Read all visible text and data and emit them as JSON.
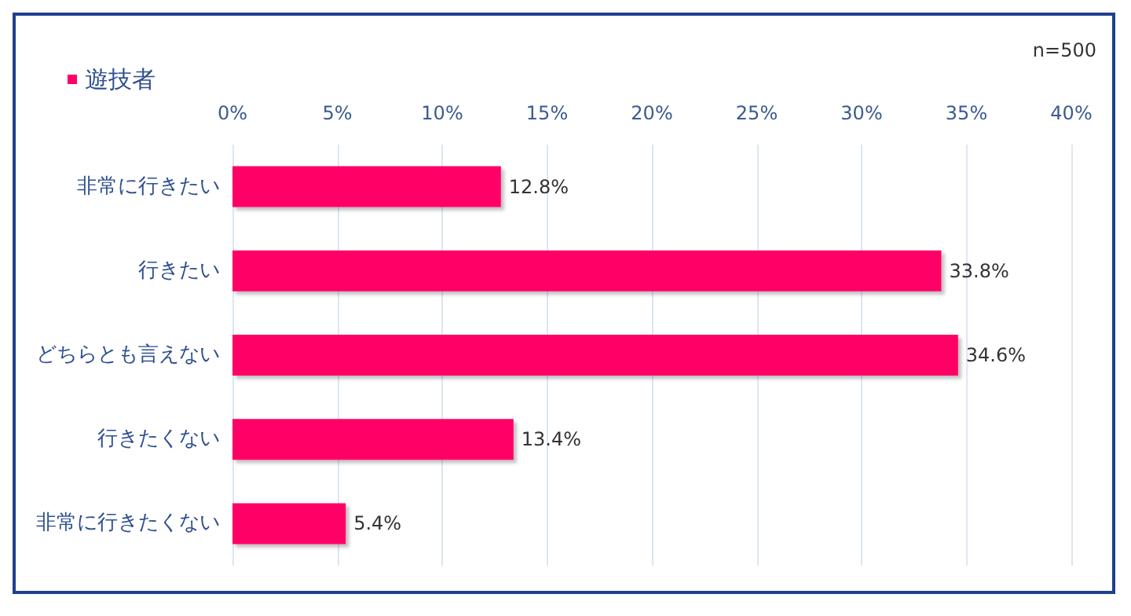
{
  "chart_data": {
    "type": "bar",
    "orientation": "horizontal",
    "categories": [
      "非常に行きたい",
      "行きたい",
      "どちらとも言えない",
      "行きたくない",
      "非常に行きたくない"
    ],
    "series": [
      {
        "name": "遊技者",
        "color": "#ff0066",
        "values": [
          12.8,
          33.8,
          34.6,
          13.4,
          5.4
        ]
      }
    ],
    "value_labels": [
      "12.8%",
      "33.8%",
      "34.6%",
      "13.4%",
      "5.4%"
    ],
    "xlim": [
      0,
      40
    ],
    "xticks": [
      {
        "value": 0,
        "label": "0%"
      },
      {
        "value": 5,
        "label": "5%"
      },
      {
        "value": 10,
        "label": "10%"
      },
      {
        "value": 15,
        "label": "15%"
      },
      {
        "value": 20,
        "label": "20%"
      },
      {
        "value": 25,
        "label": "25%"
      },
      {
        "value": 30,
        "label": "30%"
      },
      {
        "value": 35,
        "label": "35%"
      },
      {
        "value": 40,
        "label": "40%"
      }
    ],
    "grid": "x",
    "legend": "top left",
    "annotations": [
      "n=500"
    ]
  }
}
